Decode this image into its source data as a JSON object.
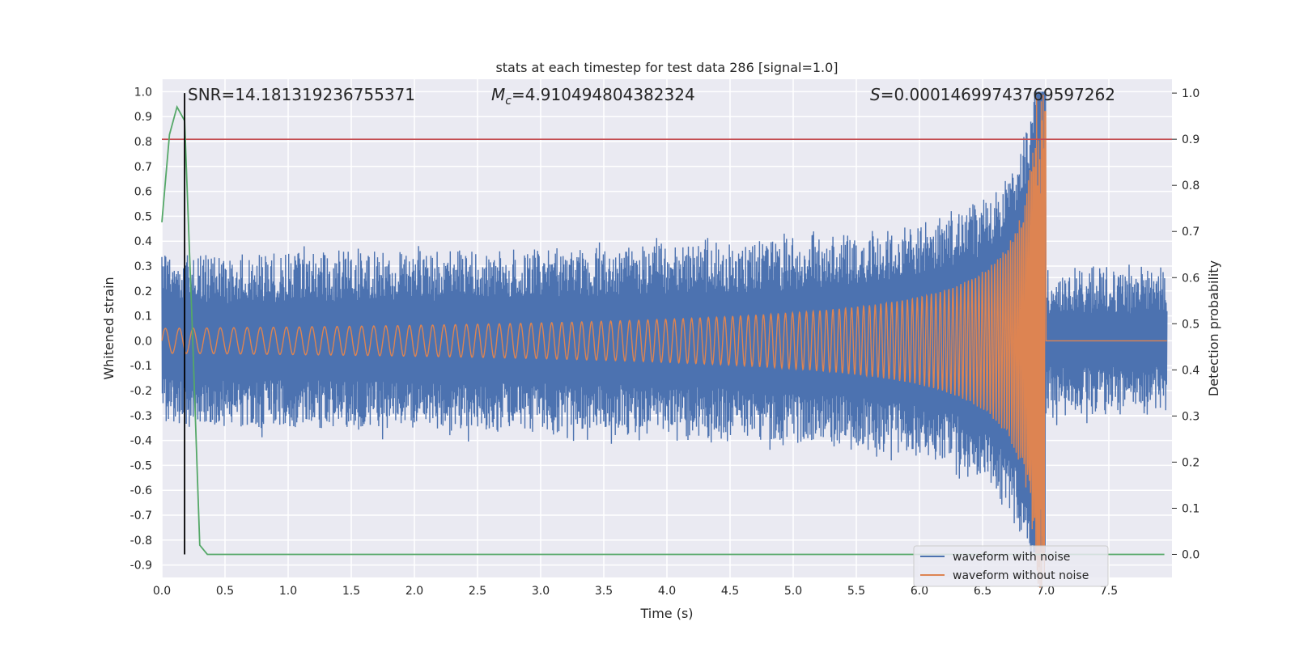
{
  "chart_data": {
    "type": "line",
    "title": "stats at each timestep for test data 286 [signal=1.0]",
    "xlabel": "Time (s)",
    "ylabel": "Whitened strain",
    "y2label": "Detection probability",
    "xlim": [
      0.0,
      8.0
    ],
    "ylim": [
      -0.95,
      1.05
    ],
    "y2lim": [
      -0.05,
      1.03
    ],
    "xticks": [
      "0.0",
      "0.5",
      "1.0",
      "1.5",
      "2.0",
      "2.5",
      "3.0",
      "3.5",
      "4.0",
      "4.5",
      "5.0",
      "5.5",
      "6.0",
      "6.5",
      "7.0",
      "7.5"
    ],
    "yticks": [
      "1.0",
      "0.9",
      "0.8",
      "0.7",
      "0.6",
      "0.5",
      "0.4",
      "0.3",
      "0.2",
      "0.1",
      "0.0",
      "-0.1",
      "-0.2",
      "-0.3",
      "-0.4",
      "-0.5",
      "-0.6",
      "-0.7",
      "-0.8",
      "-0.9"
    ],
    "y2ticks": [
      "1.0",
      "0.9",
      "0.8",
      "0.7",
      "0.6",
      "0.5",
      "0.4",
      "0.3",
      "0.2",
      "0.1",
      "0.0"
    ],
    "annotations": {
      "snr": "SNR=14.181319236755371",
      "mc_symbol": "M",
      "mc_sub": "c",
      "mc_value": "=4.910494804382324",
      "s_symbol": "S",
      "s_value": "=0.00014699743769597262"
    },
    "merger_time": 7.0,
    "noise_level": 0.3,
    "signal_start_amplitude": 0.05,
    "peak_amplitude": 1.0,
    "threshold": 0.9,
    "marker_time": 0.18,
    "detection_probability": {
      "x": [
        0.0,
        0.06,
        0.12,
        0.18,
        0.24,
        0.3,
        0.36,
        0.42,
        1.0,
        2.0,
        3.0,
        4.0,
        5.0,
        6.0,
        7.0,
        7.94
      ],
      "y": [
        0.72,
        0.91,
        0.97,
        0.94,
        0.5,
        0.02,
        0.0,
        0.0,
        0.0,
        0.0,
        0.0,
        0.0,
        0.0,
        0.0,
        0.0,
        0.0
      ]
    },
    "series": [
      {
        "name": "waveform with noise",
        "color": "#4c72b0"
      },
      {
        "name": "waveform without noise",
        "color": "#dd8452"
      },
      {
        "name": "detection probability",
        "color": "#55a868"
      },
      {
        "name": "threshold",
        "color": "#c44e52"
      }
    ],
    "legend": [
      "waveform with noise",
      "waveform without noise"
    ],
    "legend_position": "lower-right"
  }
}
